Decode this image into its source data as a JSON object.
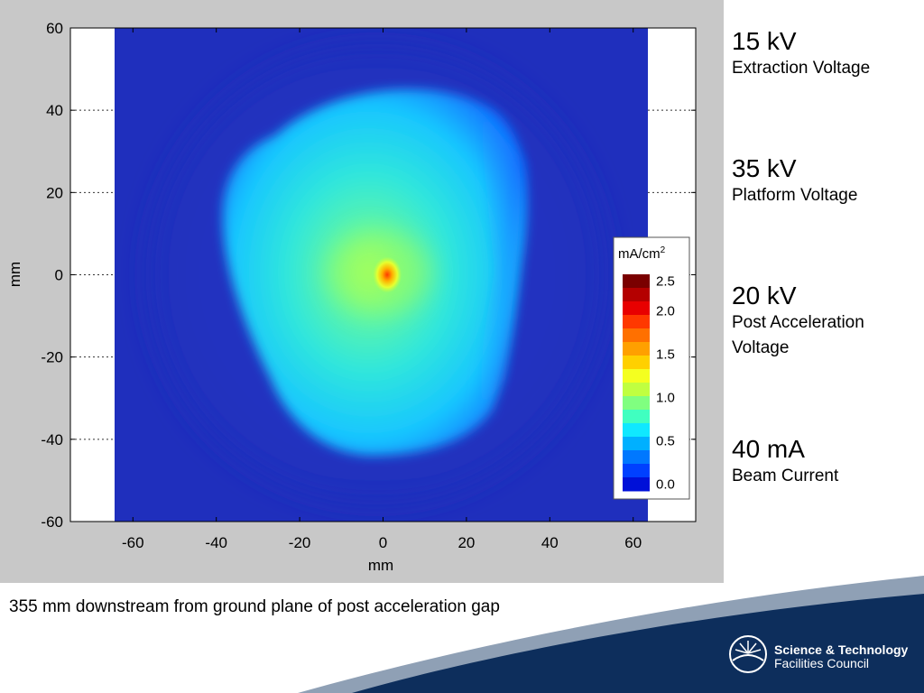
{
  "chart_data": {
    "type": "heatmap",
    "xlabel": "mm",
    "ylabel": "mm",
    "xlim": [
      -75,
      75
    ],
    "ylim": [
      -60,
      60
    ],
    "image_extent_x": [
      -65,
      65
    ],
    "xticks": [
      -60,
      -40,
      -20,
      0,
      20,
      40,
      60
    ],
    "yticks": [
      60,
      40,
      20,
      0,
      -20,
      -40,
      -60
    ],
    "colorbar": {
      "title": "mA/cm",
      "title_superscript": "2",
      "range": [
        0.0,
        2.5
      ],
      "ticks": [
        "2.5",
        "2.0",
        "1.5",
        "1.0",
        "0.5",
        "0.0"
      ],
      "colors": [
        "#7a0000",
        "#b40000",
        "#e80000",
        "#ff3800",
        "#ff7000",
        "#ffa000",
        "#ffd000",
        "#f4ff20",
        "#c0ff40",
        "#80ff80",
        "#40ffc0",
        "#10e8ff",
        "#00b0ff",
        "#0078ff",
        "#0040ff",
        "#0010d8"
      ]
    },
    "background_color": "#1f2fbd",
    "beam_peak": {
      "x": 1,
      "y": 0,
      "value": 2.0
    }
  },
  "parameters": [
    {
      "value": "15 kV",
      "desc": "Extraction Voltage"
    },
    {
      "value": "35 kV",
      "desc": "Platform Voltage"
    },
    {
      "value": "20 kV",
      "desc": "Post Acceleration Voltage"
    },
    {
      "value": "40 mA",
      "desc": "Beam Current"
    }
  ],
  "caption": "355 mm downstream from ground plane of post acceleration gap",
  "logo": {
    "line1": "Science & Technology",
    "line2": "Facilities Council"
  },
  "colors": {
    "footer_navy": "#0d2e5c",
    "footer_wave": "#8fa0b5"
  }
}
